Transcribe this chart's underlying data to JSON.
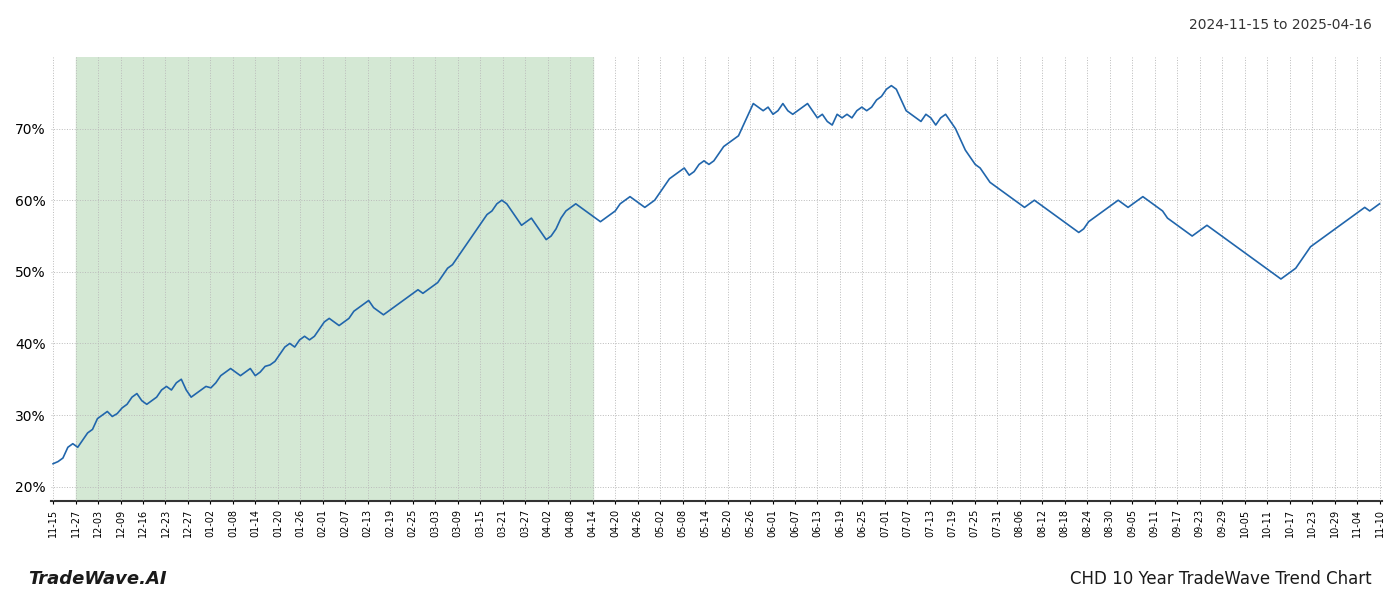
{
  "title_top_right": "2024-11-15 to 2025-04-16",
  "title_bottom_left": "TradeWave.AI",
  "title_bottom_right": "CHD 10 Year TradeWave Trend Chart",
  "background_color": "#ffffff",
  "plot_background_color": "#ffffff",
  "shade_color": "#d4e8d4",
  "line_color": "#2166ac",
  "line_width": 1.2,
  "grid_color": "#bbbbbb",
  "grid_style": ":",
  "ylim": [
    18,
    80
  ],
  "yticks": [
    20,
    30,
    40,
    50,
    60,
    70
  ],
  "ytick_labels": [
    "20%",
    "30%",
    "40%",
    "50%",
    "60%",
    "70%"
  ],
  "x_labels": [
    "11-15",
    "11-27",
    "12-03",
    "12-09",
    "12-16",
    "12-23",
    "12-27",
    "01-02",
    "01-08",
    "01-14",
    "01-20",
    "01-26",
    "02-01",
    "02-07",
    "02-13",
    "02-19",
    "02-25",
    "03-03",
    "03-09",
    "03-15",
    "03-21",
    "03-27",
    "04-02",
    "04-08",
    "04-14",
    "04-20",
    "04-26",
    "05-02",
    "05-08",
    "05-14",
    "05-20",
    "05-26",
    "06-01",
    "06-07",
    "06-13",
    "06-19",
    "06-25",
    "07-01",
    "07-07",
    "07-13",
    "07-19",
    "07-25",
    "07-31",
    "08-06",
    "08-12",
    "08-18",
    "08-24",
    "08-30",
    "09-05",
    "09-11",
    "09-17",
    "09-23",
    "09-29",
    "10-05",
    "10-11",
    "10-17",
    "10-23",
    "10-29",
    "11-04",
    "11-10"
  ],
  "values": [
    23.2,
    23.5,
    24.0,
    25.5,
    26.0,
    25.5,
    26.5,
    27.5,
    28.0,
    29.5,
    30.0,
    30.5,
    29.8,
    30.2,
    31.0,
    31.5,
    32.5,
    33.0,
    32.0,
    31.5,
    32.0,
    32.5,
    33.5,
    34.0,
    33.5,
    34.5,
    35.0,
    33.5,
    32.5,
    33.0,
    33.5,
    34.0,
    33.8,
    34.5,
    35.5,
    36.0,
    36.5,
    36.0,
    35.5,
    36.0,
    36.5,
    35.5,
    36.0,
    36.8,
    37.0,
    37.5,
    38.5,
    39.5,
    40.0,
    39.5,
    40.5,
    41.0,
    40.5,
    41.0,
    42.0,
    43.0,
    43.5,
    43.0,
    42.5,
    43.0,
    43.5,
    44.5,
    45.0,
    45.5,
    46.0,
    45.0,
    44.5,
    44.0,
    44.5,
    45.0,
    45.5,
    46.0,
    46.5,
    47.0,
    47.5,
    47.0,
    47.5,
    48.0,
    48.5,
    49.5,
    50.5,
    51.0,
    52.0,
    53.0,
    54.0,
    55.0,
    56.0,
    57.0,
    58.0,
    58.5,
    59.5,
    60.0,
    59.5,
    58.5,
    57.5,
    56.5,
    57.0,
    57.5,
    56.5,
    55.5,
    54.5,
    55.0,
    56.0,
    57.5,
    58.5,
    59.0,
    59.5,
    59.0,
    58.5,
    58.0,
    57.5,
    57.0,
    57.5,
    58.0,
    58.5,
    59.5,
    60.0,
    60.5,
    60.0,
    59.5,
    59.0,
    59.5,
    60.0,
    61.0,
    62.0,
    63.0,
    63.5,
    64.0,
    64.5,
    63.5,
    64.0,
    65.0,
    65.5,
    65.0,
    65.5,
    66.5,
    67.5,
    68.0,
    68.5,
    69.0,
    70.5,
    72.0,
    73.5,
    73.0,
    72.5,
    73.0,
    72.0,
    72.5,
    73.5,
    72.5,
    72.0,
    72.5,
    73.0,
    73.5,
    72.5,
    71.5,
    72.0,
    71.0,
    70.5,
    72.0,
    71.5,
    72.0,
    71.5,
    72.5,
    73.0,
    72.5,
    73.0,
    74.0,
    74.5,
    75.5,
    76.0,
    75.5,
    74.0,
    72.5,
    72.0,
    71.5,
    71.0,
    72.0,
    71.5,
    70.5,
    71.5,
    72.0,
    71.0,
    70.0,
    68.5,
    67.0,
    66.0,
    65.0,
    64.5,
    63.5,
    62.5,
    62.0,
    61.5,
    61.0,
    60.5,
    60.0,
    59.5,
    59.0,
    59.5,
    60.0,
    59.5,
    59.0,
    58.5,
    58.0,
    57.5,
    57.0,
    56.5,
    56.0,
    55.5,
    56.0,
    57.0,
    57.5,
    58.0,
    58.5,
    59.0,
    59.5,
    60.0,
    59.5,
    59.0,
    59.5,
    60.0,
    60.5,
    60.0,
    59.5,
    59.0,
    58.5,
    57.5,
    57.0,
    56.5,
    56.0,
    55.5,
    55.0,
    55.5,
    56.0,
    56.5,
    56.0,
    55.5,
    55.0,
    54.5,
    54.0,
    53.5,
    53.0,
    52.5,
    52.0,
    51.5,
    51.0,
    50.5,
    50.0,
    49.5,
    49.0,
    49.5,
    50.0,
    50.5,
    51.5,
    52.5,
    53.5,
    54.0,
    54.5,
    55.0,
    55.5,
    56.0,
    56.5,
    57.0,
    57.5,
    58.0,
    58.5,
    59.0,
    58.5,
    59.0,
    59.5
  ],
  "shade_start_label": "11-27",
  "shade_end_label": "04-14"
}
